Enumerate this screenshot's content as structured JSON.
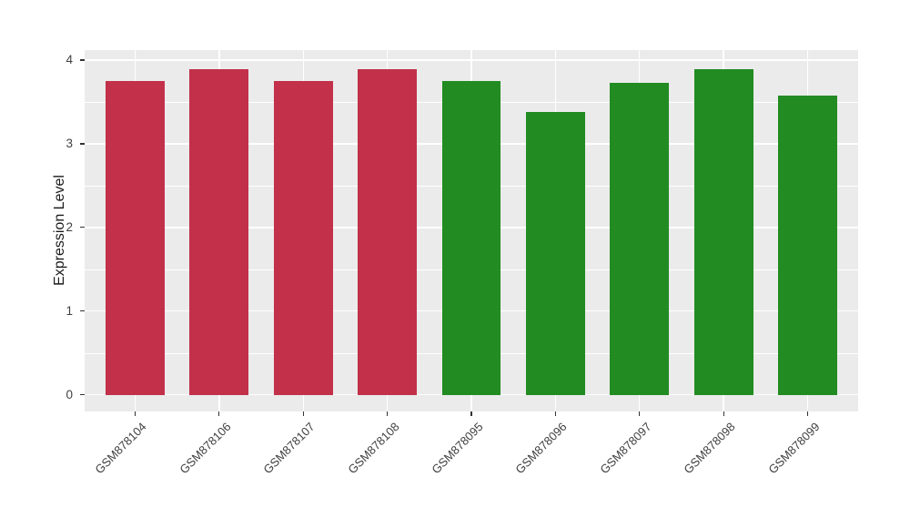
{
  "figure": {
    "background": "#FFFFFF",
    "panel_background": "#EBEBEB",
    "grid_color": "#FFFFFF",
    "tick_mark_color": "#333333",
    "axis_text_color": "#404040",
    "axis_title_color": "#1A1A1A"
  },
  "chart_data": {
    "type": "bar",
    "title": "",
    "xlabel": "",
    "ylabel": "Expression Level",
    "categories": [
      "GSM878104",
      "GSM878106",
      "GSM878107",
      "GSM878108",
      "GSM878095",
      "GSM878096",
      "GSM878097",
      "GSM878098",
      "GSM878099"
    ],
    "values": [
      3.75,
      3.89,
      3.75,
      3.89,
      3.75,
      3.38,
      3.73,
      3.89,
      3.58
    ],
    "bar_colors": [
      "#C2304A",
      "#C2304A",
      "#C2304A",
      "#C2304A",
      "#228B22",
      "#228B22",
      "#228B22",
      "#228B22",
      "#228B22"
    ],
    "group_colors": {
      "left_group": "#C2304A",
      "right_group": "#228B22"
    },
    "yticks": [
      0,
      1,
      2,
      3,
      4
    ],
    "yticks_minor": [
      0.5,
      1.5,
      2.5,
      3.5
    ],
    "ylim": [
      -0.2,
      4.12
    ],
    "x_padding_units": 0.6,
    "bar_width_frac": 0.7,
    "x_label_rotation_deg": 45,
    "grid": true,
    "legend": "none"
  }
}
